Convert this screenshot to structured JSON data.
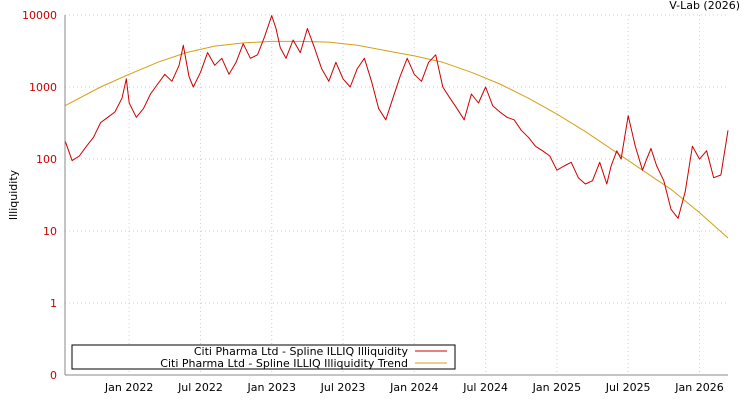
{
  "credit": "V-Lab (2026)",
  "chart_data": {
    "type": "line",
    "title": "",
    "xlabel": "",
    "ylabel": "Illiquidity",
    "yscale": "log",
    "ylim": [
      0.1,
      10000
    ],
    "yticks": [
      {
        "value": 10000,
        "label": "10000"
      },
      {
        "value": 1000,
        "label": "1000"
      },
      {
        "value": 100,
        "label": "100"
      },
      {
        "value": 10,
        "label": "10"
      },
      {
        "value": 1,
        "label": "1"
      },
      {
        "value": 0.1,
        "label": "0"
      }
    ],
    "xlim": [
      2021.55,
      2026.2
    ],
    "xticks": [
      {
        "value": 2022.0,
        "label": "Jan 2022"
      },
      {
        "value": 2022.5,
        "label": "Jul 2022"
      },
      {
        "value": 2023.0,
        "label": "Jan 2023"
      },
      {
        "value": 2023.5,
        "label": "Jul 2023"
      },
      {
        "value": 2024.0,
        "label": "Jan 2024"
      },
      {
        "value": 2024.5,
        "label": "Jul 2024"
      },
      {
        "value": 2025.0,
        "label": "Jan 2025"
      },
      {
        "value": 2025.5,
        "label": "Jul 2025"
      },
      {
        "value": 2026.0,
        "label": "Jan 2026"
      }
    ],
    "grid": true,
    "legend_position": "bottom-left",
    "series": [
      {
        "name": "Citi Pharma Ltd - Spline ILLIQ Illiquidity",
        "color": "#cc0000",
        "x": [
          2021.55,
          2021.6,
          2021.65,
          2021.7,
          2021.75,
          2021.8,
          2021.85,
          2021.9,
          2021.95,
          2021.98,
          2022.0,
          2022.05,
          2022.1,
          2022.15,
          2022.2,
          2022.25,
          2022.3,
          2022.35,
          2022.38,
          2022.42,
          2022.45,
          2022.5,
          2022.55,
          2022.6,
          2022.65,
          2022.7,
          2022.75,
          2022.8,
          2022.85,
          2022.9,
          2022.95,
          2023.0,
          2023.03,
          2023.06,
          2023.1,
          2023.15,
          2023.2,
          2023.25,
          2023.3,
          2023.35,
          2023.4,
          2023.45,
          2023.5,
          2023.55,
          2023.6,
          2023.65,
          2023.7,
          2023.75,
          2023.8,
          2023.85,
          2023.9,
          2023.95,
          2024.0,
          2024.05,
          2024.1,
          2024.15,
          2024.2,
          2024.25,
          2024.3,
          2024.35,
          2024.4,
          2024.45,
          2024.5,
          2024.55,
          2024.6,
          2024.65,
          2024.7,
          2024.75,
          2024.8,
          2024.85,
          2024.9,
          2024.95,
          2025.0,
          2025.05,
          2025.1,
          2025.15,
          2025.2,
          2025.25,
          2025.3,
          2025.35,
          2025.38,
          2025.42,
          2025.45,
          2025.5,
          2025.55,
          2025.6,
          2025.63,
          2025.66,
          2025.7,
          2025.75,
          2025.8,
          2025.85,
          2025.9,
          2025.95,
          2026.0,
          2026.05,
          2026.1,
          2026.15,
          2026.2
        ],
        "values": [
          180,
          95,
          110,
          150,
          200,
          320,
          380,
          450,
          700,
          1300,
          600,
          380,
          500,
          800,
          1100,
          1500,
          1200,
          2000,
          3800,
          1400,
          1000,
          1600,
          3000,
          2000,
          2500,
          1500,
          2200,
          4000,
          2500,
          2800,
          5000,
          9800,
          6500,
          3500,
          2500,
          4500,
          3000,
          6500,
          3500,
          1800,
          1200,
          2200,
          1300,
          1000,
          1800,
          2500,
          1200,
          500,
          350,
          700,
          1400,
          2500,
          1500,
          1200,
          2200,
          2800,
          1000,
          700,
          500,
          350,
          800,
          600,
          1000,
          550,
          450,
          380,
          350,
          250,
          200,
          150,
          130,
          110,
          70,
          80,
          90,
          55,
          45,
          50,
          90,
          45,
          80,
          130,
          100,
          400,
          150,
          70,
          100,
          140,
          80,
          50,
          20,
          15,
          35,
          150,
          100,
          130,
          55,
          60,
          250
        ],
        "name_key": "red"
      },
      {
        "name": "Citi Pharma Ltd - Spline ILLIQ Illiquidity Trend",
        "color": "#d4a017",
        "x": [
          2021.55,
          2021.8,
          2022.0,
          2022.2,
          2022.4,
          2022.6,
          2022.8,
          2023.0,
          2023.2,
          2023.4,
          2023.6,
          2023.8,
          2024.0,
          2024.2,
          2024.4,
          2024.6,
          2024.8,
          2025.0,
          2025.2,
          2025.4,
          2025.6,
          2025.8,
          2026.0,
          2026.2
        ],
        "values": [
          550,
          1000,
          1500,
          2200,
          3000,
          3700,
          4100,
          4300,
          4300,
          4200,
          3800,
          3200,
          2700,
          2200,
          1600,
          1100,
          700,
          420,
          240,
          130,
          70,
          38,
          18,
          8
        ]
      }
    ]
  }
}
